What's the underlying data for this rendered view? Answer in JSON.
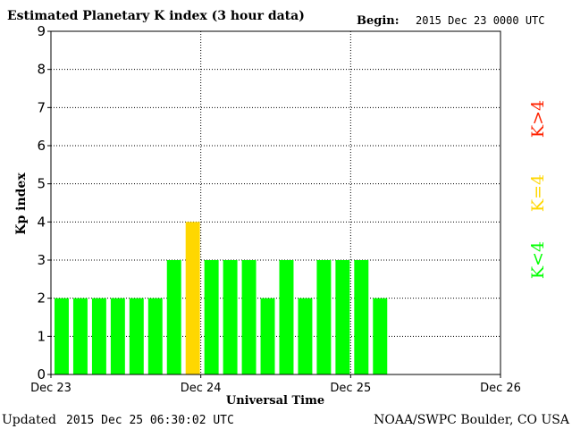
{
  "header": {
    "title": "Estimated Planetary K index (3 hour data)",
    "begin_label": "Begin:",
    "begin_value": "2015 Dec 23 0000 UTC"
  },
  "footer": {
    "updated_label": "Updated",
    "updated_value": "2015 Dec 25 06:30:02 UTC",
    "source": "NOAA/SWPC Boulder, CO USA"
  },
  "legend": {
    "below": "K<4",
    "equal": "K=4",
    "above": "K>4"
  },
  "colors": {
    "below": "#00ff00",
    "equal": "#ffd700",
    "above": "#ff2200",
    "grid": "#000000"
  },
  "chart_data": {
    "type": "bar",
    "ylabel": "Kp index",
    "xlabel": "Universal Time",
    "ylim": [
      0,
      9
    ],
    "yticks": [
      "0",
      "1",
      "2",
      "3",
      "4",
      "5",
      "6",
      "7",
      "8",
      "9"
    ],
    "xticks": [
      "Dec 23",
      "Dec 24",
      "Dec 25",
      "Dec 26"
    ],
    "interval_hours": 3,
    "total_slots": 24,
    "values": [
      2,
      2,
      2,
      2,
      2,
      2,
      3,
      4,
      3,
      3,
      3,
      2,
      3,
      2,
      3,
      3,
      3,
      2
    ],
    "grid": true
  }
}
